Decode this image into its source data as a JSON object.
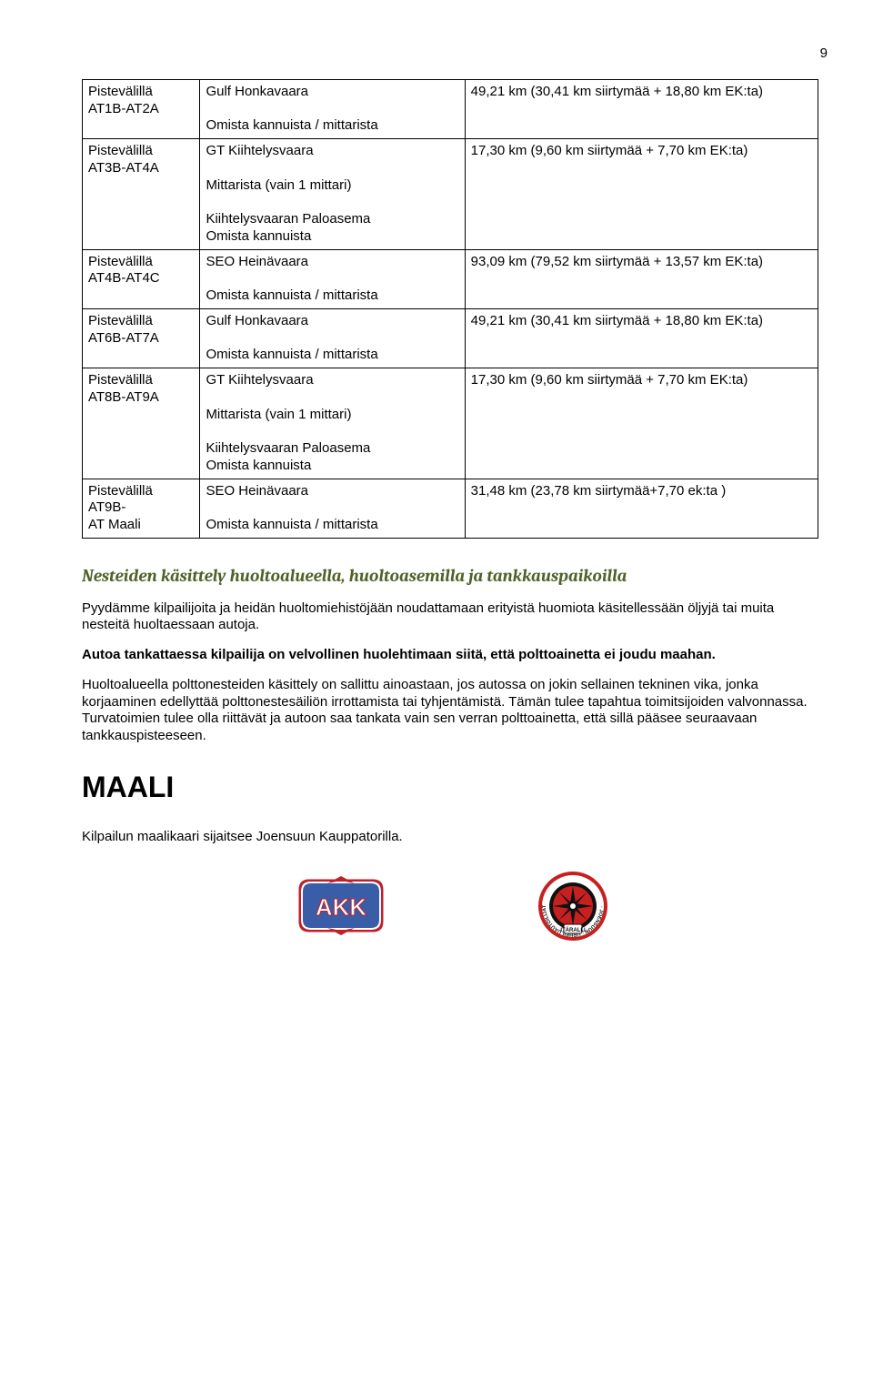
{
  "page_number": "9",
  "table": {
    "rows": [
      {
        "c1": "Pistevälillä\nAT1B-AT2A",
        "c2": "Gulf Honkavaara\n\nOmista kannuista / mittarista",
        "c3": "49,21 km (30,41 km siirtymää + 18,80 km EK:ta)"
      },
      {
        "c1": "Pistevälillä\nAT3B-AT4A",
        "c2": "GT Kiihtelysvaara\n\nMittarista (vain 1 mittari)\n\nKiihtelysvaaran Paloasema\nOmista kannuista",
        "c3": "17,30 km (9,60 km siirtymää + 7,70 km EK:ta)"
      },
      {
        "c1": "Pistevälillä\nAT4B-AT4C",
        "c2": "SEO Heinävaara\n\nOmista kannuista / mittarista",
        "c3": "93,09 km (79,52 km siirtymää + 13,57 km EK:ta)"
      },
      {
        "c1": "Pistevälillä\nAT6B-AT7A",
        "c2": "Gulf Honkavaara\n\nOmista kannuista / mittarista",
        "c3": "49,21 km (30,41 km siirtymää + 18,80 km EK:ta)"
      },
      {
        "c1": "Pistevälillä\nAT8B-AT9A",
        "c2": "GT Kiihtelysvaara\n\nMittarista (vain 1 mittari)\n\nKiihtelysvaaran Paloasema\nOmista kannuista",
        "c3": "17,30 km (9,60 km siirtymää + 7,70 km EK:ta)"
      },
      {
        "c1": "Pistevälillä\nAT9B-\nAT Maali",
        "c2": "SEO Heinävaara\n\nOmista kannuista / mittarista",
        "c3": "31,48 km (23,78 km siirtymää+7,70 ek:ta )"
      }
    ]
  },
  "section_heading": "Nesteiden käsittely huoltoalueella, huoltoasemilla ja tankkauspaikoilla",
  "para1": "Pyydämme kilpailijoita ja heidän huoltomiehistöjään noudattamaan erityistä huomiota käsitellessään öljyjä tai muita nesteitä huoltaessaan autoja.",
  "para2": "Autoa tankattaessa kilpailija on velvollinen huolehtimaan siitä, että polttoainetta ei joudu maahan.",
  "para3": "Huoltoalueella polttonesteiden käsittely on sallittu ainoastaan, jos autossa on jokin sellainen tekninen vika, jonka korjaaminen edellyttää polttonestesäiliön irrottamista tai tyhjentämistä. Tämän tulee tapahtua toimitsijoiden valvonnassa. Turvatoimien tulee olla riittävät ja autoon saa tankata vain sen verran polttoainetta, että sillä pääsee seuraavaan tankkauspisteeseen.",
  "maali_heading": "MAALI",
  "maali_text": "Kilpailun maalikaari sijaitsee Joensuun Kauppatorilla.",
  "colors": {
    "heading_color": "#4f6128",
    "akk_blue": "#3a5da8",
    "akk_red": "#c0202a",
    "itaralli_red": "#c62020",
    "itaralli_black": "#111111"
  }
}
